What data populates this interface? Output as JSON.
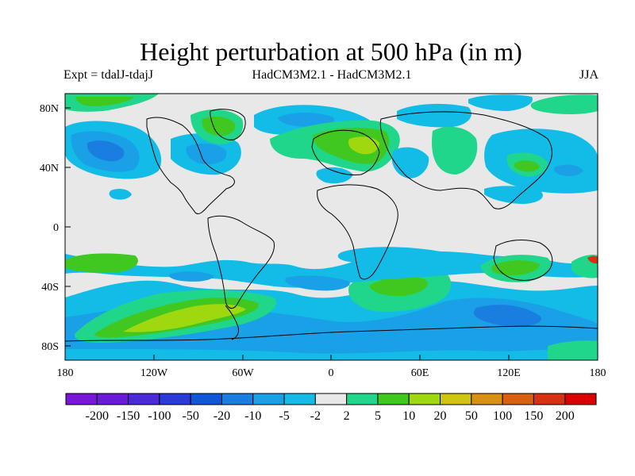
{
  "title": "Height perturbation at 500 hPa (in m)",
  "subtitle_left": "Expt = tdalJ-tdajJ",
  "subtitle_center": "HadCM3M2.1 - HadCM3M2.1",
  "subtitle_right": "JJA",
  "chart_data": {
    "type": "map",
    "title": "Height perturbation at 500 hPa (in m)",
    "season": "JJA",
    "experiment": "tdalJ-tdajJ",
    "model": "HadCM3M2.1 - HadCM3M2.1",
    "lon_range": [
      -180,
      180
    ],
    "lat_range": [
      -90,
      90
    ],
    "x_ticks": [
      "180",
      "120W",
      "60W",
      "0",
      "60E",
      "120E",
      "180"
    ],
    "x_tick_values": [
      -180,
      -120,
      -60,
      0,
      60,
      120,
      180
    ],
    "y_ticks": [
      "80N",
      "40N",
      "0",
      "40S",
      "80S"
    ],
    "y_tick_values": [
      80,
      40,
      0,
      -40,
      -80
    ],
    "colorbar": {
      "labels": [
        "-200",
        "-150",
        "-100",
        "-50",
        "-20",
        "-10",
        "-5",
        "-2",
        "2",
        "5",
        "10",
        "20",
        "50",
        "100",
        "150",
        "200"
      ],
      "colors": [
        "#7a16d8",
        "#6a1ad8",
        "#4a2ad8",
        "#2a3ad8",
        "#1056d8",
        "#1a7ee0",
        "#1aa0e6",
        "#12bce6",
        "#e8e8e8",
        "#20d68a",
        "#40c820",
        "#a0d810",
        "#d0c410",
        "#d89010",
        "#d86010",
        "#d83010",
        "#d80000"
      ]
    }
  }
}
